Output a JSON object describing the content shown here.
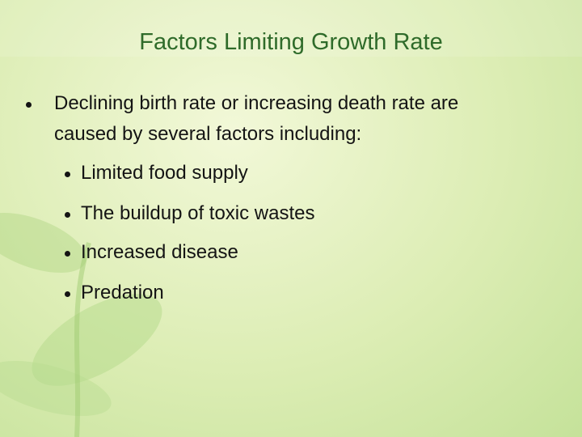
{
  "slide": {
    "title": "Factors Limiting Growth Rate",
    "bullet": {
      "text_lines": [
        "Declining birth rate or increasing death rate are",
        "caused by several factors including:"
      ],
      "sub_items": [
        "Limited food supply",
        "The buildup of toxic wastes",
        "Increased disease",
        "Predation"
      ]
    }
  }
}
